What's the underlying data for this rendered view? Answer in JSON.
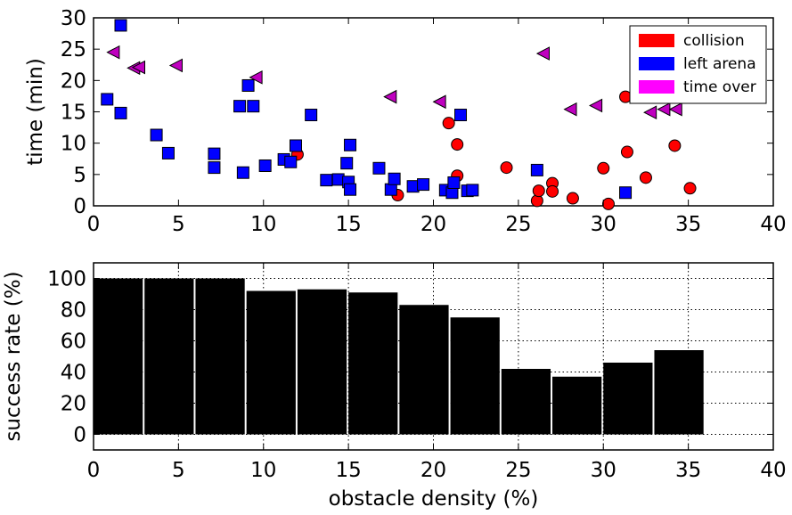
{
  "chart_data": [
    {
      "type": "scatter",
      "title": "",
      "xlabel": "",
      "ylabel": "time (min)",
      "xlim": [
        0,
        40
      ],
      "ylim": [
        0,
        30
      ],
      "xticks": [
        "0",
        "5",
        "10",
        "15",
        "20",
        "25",
        "30",
        "35",
        "40"
      ],
      "yticks": [
        "0",
        "5",
        "10",
        "15",
        "20",
        "25",
        "30"
      ],
      "grid": false,
      "legend_position": "top-right",
      "series": [
        {
          "name": "collision",
          "marker": "circle",
          "color": "#ff0000",
          "points": [
            [
              12.0,
              8.2
            ],
            [
              17.9,
              1.7
            ],
            [
              20.9,
              13.2
            ],
            [
              21.4,
              9.8
            ],
            [
              21.4,
              4.8
            ],
            [
              24.3,
              6.1
            ],
            [
              26.1,
              0.8
            ],
            [
              26.2,
              2.4
            ],
            [
              27.0,
              3.6
            ],
            [
              27.0,
              2.3
            ],
            [
              28.2,
              1.2
            ],
            [
              30.0,
              6.0
            ],
            [
              30.3,
              0.3
            ],
            [
              31.3,
              17.4
            ],
            [
              31.4,
              8.6
            ],
            [
              32.5,
              4.5
            ],
            [
              34.2,
              9.6
            ],
            [
              35.1,
              2.8
            ]
          ]
        },
        {
          "name": "left arena",
          "marker": "square",
          "color": "#0000ff",
          "points": [
            [
              0.8,
              17.0
            ],
            [
              1.6,
              28.8
            ],
            [
              1.6,
              14.8
            ],
            [
              3.7,
              11.3
            ],
            [
              4.4,
              8.4
            ],
            [
              7.1,
              8.3
            ],
            [
              7.1,
              6.1
            ],
            [
              8.6,
              15.9
            ],
            [
              8.8,
              5.3
            ],
            [
              9.1,
              19.2
            ],
            [
              9.4,
              15.9
            ],
            [
              10.1,
              6.4
            ],
            [
              11.2,
              7.4
            ],
            [
              11.6,
              7.0
            ],
            [
              11.9,
              9.6
            ],
            [
              12.8,
              14.5
            ],
            [
              13.7,
              4.1
            ],
            [
              14.4,
              4.2
            ],
            [
              14.9,
              6.8
            ],
            [
              15.0,
              3.8
            ],
            [
              15.1,
              9.7
            ],
            [
              15.1,
              2.6
            ],
            [
              16.8,
              6.0
            ],
            [
              17.5,
              2.6
            ],
            [
              17.7,
              4.3
            ],
            [
              18.8,
              3.1
            ],
            [
              19.4,
              3.4
            ],
            [
              20.7,
              2.5
            ],
            [
              21.1,
              2.1
            ],
            [
              21.2,
              3.7
            ],
            [
              21.6,
              14.5
            ],
            [
              22.0,
              2.4
            ],
            [
              22.3,
              2.5
            ],
            [
              26.1,
              5.7
            ],
            [
              31.3,
              2.1
            ]
          ]
        },
        {
          "name": "time over",
          "marker": "triangle-left",
          "color": "#bf00bf",
          "points": [
            [
              1.2,
              24.5
            ],
            [
              2.4,
              22.0
            ],
            [
              2.7,
              22.1
            ],
            [
              4.9,
              22.4
            ],
            [
              9.6,
              20.5
            ],
            [
              17.5,
              17.4
            ],
            [
              20.4,
              16.6
            ],
            [
              26.5,
              24.3
            ],
            [
              28.1,
              15.4
            ],
            [
              29.6,
              16.0
            ],
            [
              32.8,
              14.9
            ],
            [
              33.6,
              15.4
            ],
            [
              34.3,
              15.4
            ]
          ]
        }
      ],
      "legend": [
        {
          "label": "collision",
          "color": "#ff0000"
        },
        {
          "label": "left arena",
          "color": "#0000ff"
        },
        {
          "label": "time over",
          "color": "#ff00ff"
        }
      ]
    },
    {
      "type": "bar",
      "title": "",
      "xlabel": "obstacle density (%)",
      "ylabel": "success rate (%)",
      "xlim": [
        0,
        40
      ],
      "ylim": [
        -10,
        110
      ],
      "xticks": [
        "0",
        "5",
        "10",
        "15",
        "20",
        "25",
        "30",
        "35",
        "40"
      ],
      "yticks": [
        "0",
        "20",
        "40",
        "60",
        "80",
        "100"
      ],
      "grid": true,
      "bar_color": "#000000",
      "bin_edges": [
        0,
        3,
        6,
        9,
        12,
        15,
        18,
        21,
        24,
        27,
        30,
        33,
        36
      ],
      "values": [
        100,
        100,
        100,
        92,
        93,
        91,
        83,
        75,
        42,
        37,
        46,
        54
      ]
    }
  ]
}
